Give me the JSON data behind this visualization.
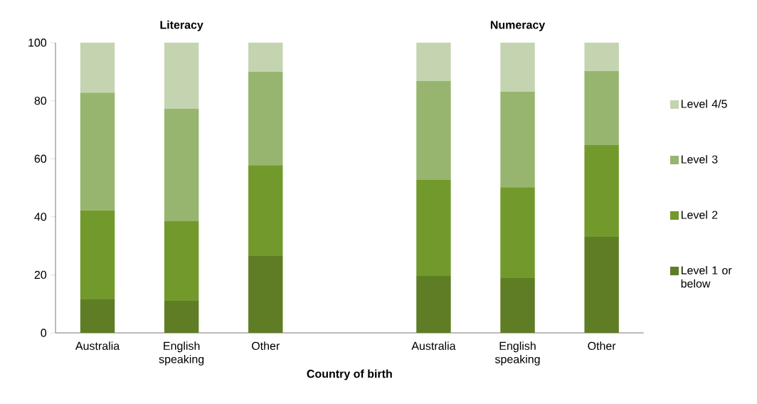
{
  "chart_data": {
    "type": "bar",
    "stacked": true,
    "xlabel": "Country of birth",
    "categories": [
      "Australia",
      "English speaking",
      "Other",
      null,
      "Australia",
      "English speaking",
      "Other"
    ],
    "annotations": [
      "Literacy",
      "Numeracy"
    ],
    "series": [
      {
        "name": "Level 1 or below",
        "color": "#5e7d24",
        "values": [
          11.5,
          11.0,
          26.5,
          null,
          19.6,
          18.9,
          33.1
        ]
      },
      {
        "name": "Level 2",
        "color": "#72992c",
        "values": [
          30.7,
          27.5,
          31.3,
          null,
          33.1,
          31.3,
          31.6
        ]
      },
      {
        "name": "Level 3",
        "color": "#97b56e",
        "values": [
          40.6,
          38.7,
          32.2,
          null,
          34.1,
          32.9,
          25.5
        ]
      },
      {
        "name": "Level 4/5",
        "color": "#c4d4b0",
        "values": [
          17.2,
          22.8,
          10.0,
          null,
          13.2,
          16.9,
          9.8
        ]
      }
    ],
    "ylim": [
      0,
      100
    ],
    "yticks": [
      0,
      20,
      40,
      60,
      80,
      100
    ],
    "grid": false,
    "legend": "right"
  }
}
